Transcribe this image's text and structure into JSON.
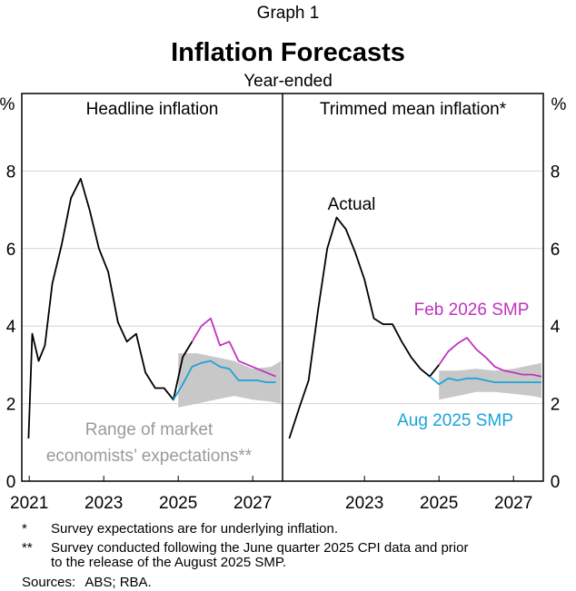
{
  "graph_label": "Graph 1",
  "title": "Inflation Forecasts",
  "subtitle": "Year-ended",
  "colors": {
    "actual": "#000000",
    "feb_smp": "#c032c0",
    "aug_smp": "#1ba4d8",
    "range": "#c8c8c8",
    "range_text": "#9a9a9a",
    "grid": "#d4d4d4"
  },
  "chart_data": {
    "type": "line",
    "y_unit": "%",
    "ylim": [
      0,
      10
    ],
    "yticks": [
      0,
      2,
      4,
      6,
      8
    ],
    "panels": [
      {
        "title": "Headline inflation",
        "xlim": [
          2020.8,
          2027.8
        ],
        "xticks": [
          {
            "x": 2021,
            "label": "2021"
          },
          {
            "x": 2023,
            "label": "2023"
          },
          {
            "x": 2025,
            "label": "2025"
          },
          {
            "x": 2027,
            "label": "2027"
          }
        ],
        "series": [
          {
            "name": "Actual",
            "color_key": "actual",
            "x": [
              2020.98,
              2021.08,
              2021.25,
              2021.42,
              2021.62,
              2021.87,
              2022.12,
              2022.38,
              2022.62,
              2022.87,
              2023.12,
              2023.38,
              2023.62,
              2023.87,
              2024.12,
              2024.38,
              2024.62,
              2024.87,
              2025.12,
              2025.37
            ],
            "y": [
              1.1,
              3.8,
              3.1,
              3.5,
              5.1,
              6.1,
              7.3,
              7.8,
              7.0,
              6.0,
              5.4,
              4.1,
              3.6,
              3.8,
              2.8,
              2.4,
              2.4,
              2.1,
              3.2,
              3.6
            ]
          },
          {
            "name": "Feb 2026 SMP",
            "color_key": "feb_smp",
            "x": [
              2025.37,
              2025.62,
              2025.87,
              2026.12,
              2026.37,
              2026.62,
              2026.87,
              2027.12,
              2027.37,
              2027.62
            ],
            "y": [
              3.6,
              4.0,
              4.2,
              3.5,
              3.6,
              3.1,
              3.0,
              2.9,
              2.8,
              2.7
            ]
          },
          {
            "name": "Aug 2025 SMP",
            "color_key": "aug_smp",
            "x": [
              2024.87,
              2025.12,
              2025.37,
              2025.62,
              2025.87,
              2026.12,
              2026.37,
              2026.62,
              2026.87,
              2027.12,
              2027.37,
              2027.62
            ],
            "y": [
              2.1,
              2.5,
              2.95,
              3.05,
              3.1,
              2.95,
              2.9,
              2.6,
              2.6,
              2.6,
              2.55,
              2.55
            ]
          }
        ],
        "range_band": {
          "name": "Range of market economists' expectations",
          "x": [
            2025.0,
            2025.5,
            2026.0,
            2026.5,
            2027.0,
            2027.5,
            2027.75
          ],
          "low": [
            1.9,
            2.0,
            2.1,
            2.2,
            2.1,
            2.05,
            2.0
          ],
          "high": [
            3.3,
            3.3,
            3.2,
            3.1,
            2.9,
            2.95,
            3.1
          ]
        }
      },
      {
        "title": "Trimmed mean inflation*",
        "xlim": [
          2020.8,
          2027.8
        ],
        "xticks": [
          {
            "x": 2023,
            "label": "2023"
          },
          {
            "x": 2025,
            "label": "2025"
          },
          {
            "x": 2027,
            "label": "2027"
          }
        ],
        "series": [
          {
            "name": "Actual",
            "color_key": "actual",
            "x": [
              2020.98,
              2021.25,
              2021.5,
              2021.75,
              2022.0,
              2022.25,
              2022.5,
              2022.75,
              2023.0,
              2023.25,
              2023.5,
              2023.75,
              2024.0,
              2024.25,
              2024.5,
              2024.75,
              2025.0
            ],
            "y": [
              1.1,
              1.9,
              2.6,
              4.4,
              6.0,
              6.8,
              6.5,
              5.9,
              5.2,
              4.2,
              4.05,
              4.05,
              3.6,
              3.2,
              2.9,
              2.7,
              3.0
            ]
          },
          {
            "name": "Feb 2026 SMP",
            "color_key": "feb_smp",
            "x": [
              2025.0,
              2025.25,
              2025.5,
              2025.75,
              2026.0,
              2026.25,
              2026.5,
              2026.75,
              2027.0,
              2027.25,
              2027.5,
              2027.75
            ],
            "y": [
              3.0,
              3.35,
              3.55,
              3.7,
              3.4,
              3.2,
              2.95,
              2.85,
              2.8,
              2.75,
              2.75,
              2.7
            ]
          },
          {
            "name": "Aug 2025 SMP",
            "color_key": "aug_smp",
            "x": [
              2024.75,
              2025.0,
              2025.25,
              2025.5,
              2025.75,
              2026.0,
              2026.25,
              2026.5,
              2026.75,
              2027.0,
              2027.25,
              2027.5,
              2027.75
            ],
            "y": [
              2.7,
              2.5,
              2.65,
              2.6,
              2.65,
              2.65,
              2.6,
              2.55,
              2.55,
              2.55,
              2.55,
              2.55,
              2.55
            ]
          }
        ],
        "range_band": {
          "name": "Range of market economists' expectations",
          "x": [
            2025.0,
            2025.5,
            2026.0,
            2026.5,
            2027.0,
            2027.5,
            2027.75
          ],
          "low": [
            2.1,
            2.2,
            2.3,
            2.3,
            2.25,
            2.2,
            2.15
          ],
          "high": [
            2.85,
            2.85,
            2.9,
            2.85,
            2.9,
            3.0,
            3.05
          ]
        }
      }
    ],
    "annotations": {
      "range_label_line1": "Range of market",
      "range_label_line2": "economists’ expectations**",
      "actual_label": "Actual",
      "feb_label": "Feb 2026 SMP",
      "aug_label": "Aug 2025 SMP"
    }
  },
  "footnotes": [
    {
      "mark": "*",
      "text": "Survey expectations are for underlying inflation."
    },
    {
      "mark": "**",
      "text": "Survey conducted following the June quarter 2025 CPI data and prior"
    },
    {
      "mark": "",
      "text": "to the release of the August 2025 SMP."
    }
  ],
  "sources_label": "Sources:",
  "sources_text": "ABS; RBA."
}
